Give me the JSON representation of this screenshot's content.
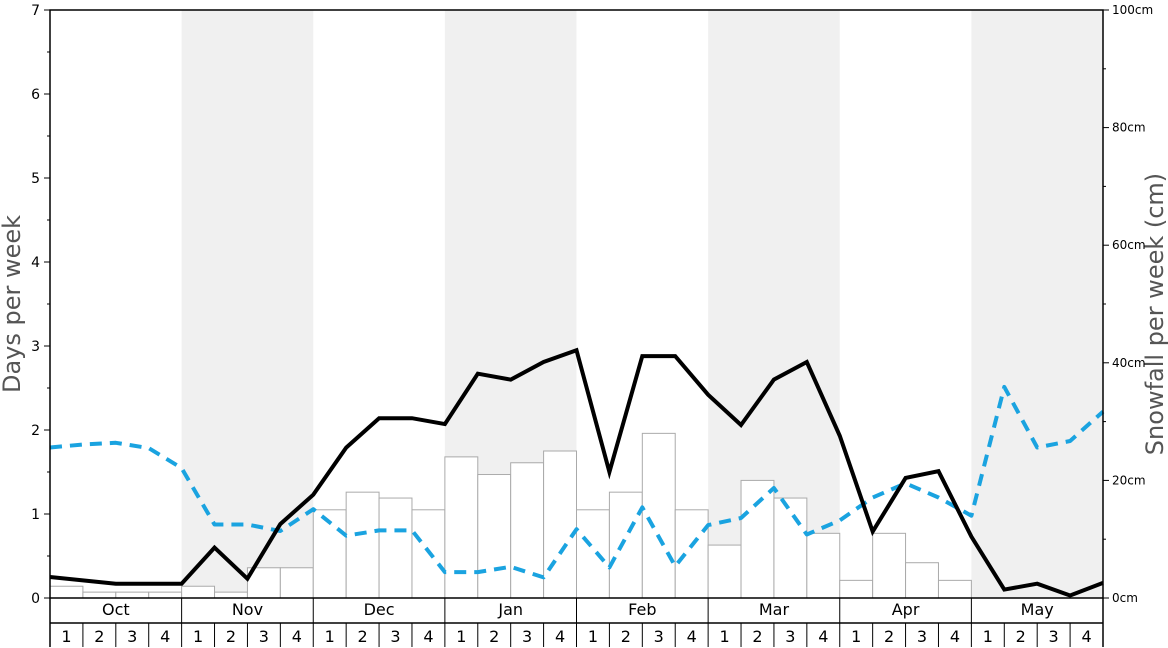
{
  "chart_data": {
    "type": "bar",
    "ylabel": "Days per week",
    "y2label": "Snowfall per week (cm)",
    "ylim": [
      0,
      7
    ],
    "y2lim": [
      0,
      100
    ],
    "yticks": [
      "0",
      "1",
      "2",
      "3",
      "4",
      "5",
      "6",
      "7"
    ],
    "y2ticks": [
      "0cm",
      "20cm",
      "40cm",
      "60cm",
      "80cm",
      "100cm"
    ],
    "months": [
      "Oct",
      "Nov",
      "Dec",
      "Jan",
      "Feb",
      "Mar",
      "Apr",
      "May"
    ],
    "week_labels": [
      "1",
      "2",
      "3",
      "4"
    ],
    "shaded_bands": true,
    "series": [
      {
        "type": "bar",
        "axis": "left",
        "color": "#ffffff",
        "stroke": "#aaaaaa",
        "values": [
          0.14,
          0.07,
          0.07,
          0.07,
          0.14,
          0.07,
          0.36,
          0.36,
          1.05,
          1.26,
          1.19,
          1.05,
          1.68,
          1.47,
          1.61,
          1.75,
          1.05,
          1.26,
          1.96,
          1.05,
          0.63,
          1.4,
          1.19,
          0.77,
          0.21,
          0.77,
          0.42,
          0.21,
          0,
          0,
          0,
          0
        ]
      },
      {
        "type": "line",
        "axis": "left",
        "color": "#000000",
        "values": [
          0.25,
          0.21,
          0.17,
          0.17,
          0.17,
          0.6,
          0.23,
          0.88,
          1.23,
          1.79,
          2.14,
          2.14,
          2.07,
          2.67,
          2.6,
          2.81,
          2.95,
          1.5,
          2.88,
          2.88,
          2.42,
          2.06,
          2.6,
          2.81,
          1.93,
          0.79,
          1.43,
          1.51,
          0.73,
          0.1,
          0.17,
          0.03,
          0.18
        ]
      },
      {
        "type": "line",
        "axis": "right",
        "dashed": true,
        "color": "#1aa3e0",
        "values": [
          25.6,
          26.1,
          26.4,
          25.5,
          22.1,
          12.5,
          12.5,
          11.4,
          15.1,
          10.6,
          11.5,
          11.5,
          4.4,
          4.4,
          5.3,
          3.5,
          11.7,
          5.2,
          15.4,
          5.4,
          12.4,
          13.6,
          18.7,
          10.8,
          13.2,
          17.1,
          19.5,
          17.1,
          14,
          35.9,
          25.6,
          26.7,
          31.7
        ]
      }
    ]
  }
}
